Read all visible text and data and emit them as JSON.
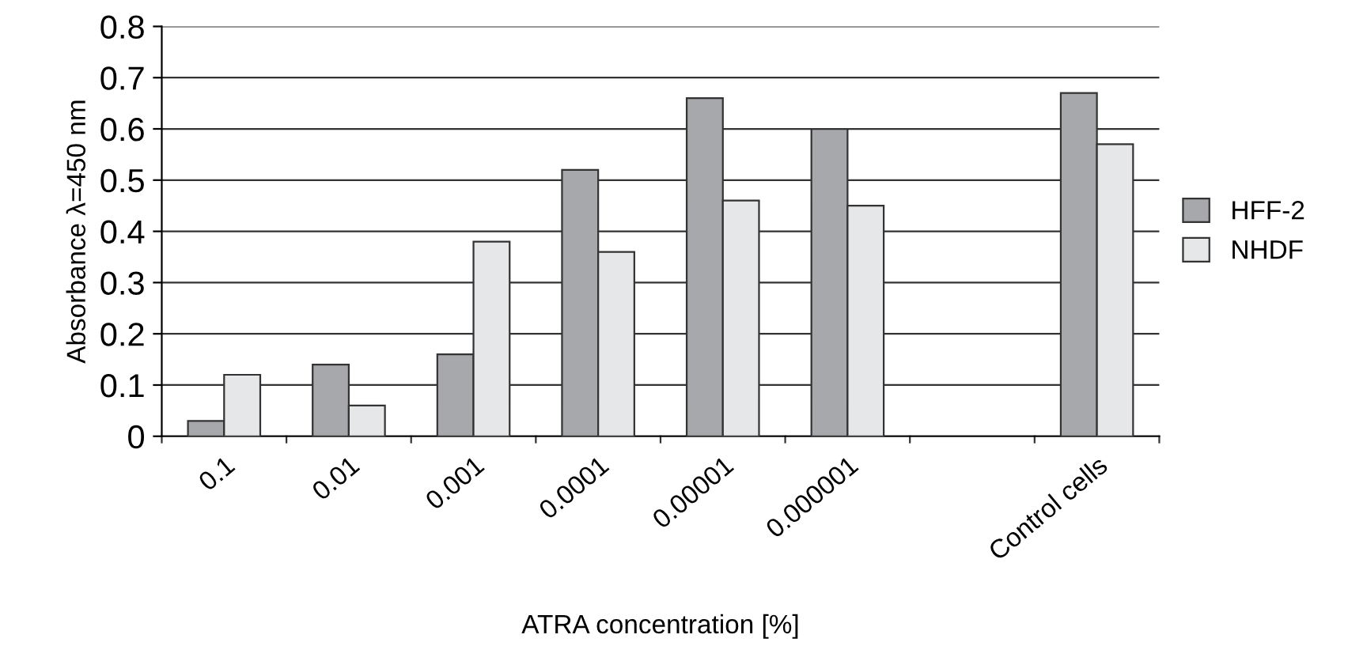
{
  "chart_data": {
    "type": "bar",
    "xlabel": "ATRA concentration [%]",
    "ylabel": "Absorbance λ=450 nm",
    "categories": [
      "0.1",
      "0.01",
      "0.001",
      "0.0001",
      "0.00001",
      "0.000001",
      null,
      "Control cells"
    ],
    "series": [
      {
        "name": "HFF-2",
        "color": "#a7a8ab",
        "values": [
          0.03,
          0.14,
          0.16,
          0.52,
          0.66,
          0.6,
          null,
          0.67
        ]
      },
      {
        "name": "NHDF",
        "color": "#e6e7e8",
        "values": [
          0.12,
          0.06,
          0.38,
          0.36,
          0.46,
          0.45,
          null,
          0.57
        ]
      }
    ],
    "ylim": [
      0,
      0.8
    ],
    "yticks": [
      0,
      0.1,
      0.2,
      0.3,
      0.4,
      0.5,
      0.6,
      0.7,
      0.8
    ],
    "grid": "y",
    "legend": "right"
  }
}
